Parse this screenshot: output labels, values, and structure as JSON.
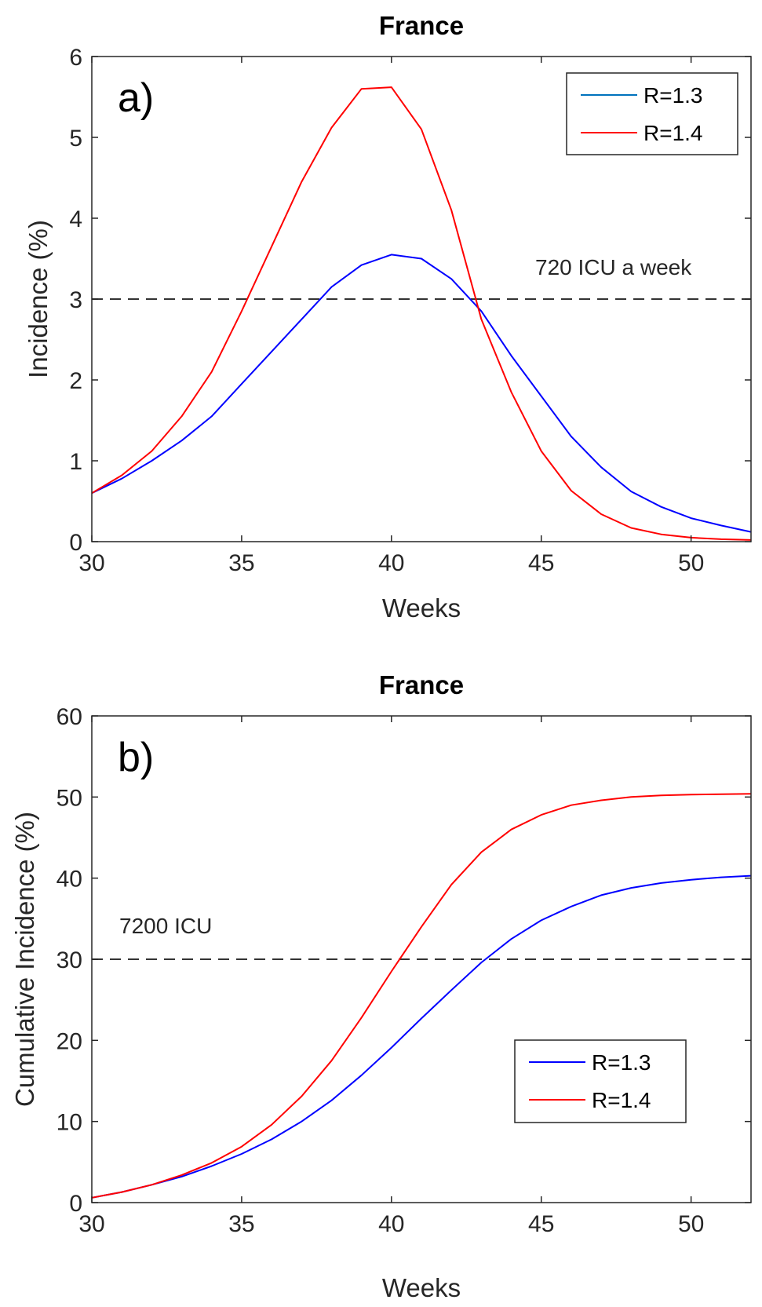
{
  "chart_data": [
    {
      "type": "line",
      "title": "France",
      "panel_label": "a)",
      "xlabel": "Weeks",
      "ylabel": "Incidence (%)",
      "xlim": [
        30,
        52
      ],
      "ylim": [
        0,
        6
      ],
      "xticks": [
        30,
        35,
        40,
        45,
        50
      ],
      "yticks": [
        0,
        1,
        2,
        3,
        4,
        5,
        6
      ],
      "grid": false,
      "legend_position": "top-right",
      "reference_line": {
        "y": 3,
        "style": "dashed",
        "color": "#000000",
        "label": "720 ICU a week"
      },
      "x": [
        30,
        31,
        32,
        33,
        34,
        35,
        36,
        37,
        38,
        39,
        40,
        41,
        42,
        43,
        44,
        45,
        46,
        47,
        48,
        49,
        50,
        51,
        52
      ],
      "series": [
        {
          "name": "R=1.3",
          "color": "#0000ff",
          "legend_color": "#0072bd",
          "values": [
            0.6,
            0.78,
            1.0,
            1.25,
            1.55,
            1.95,
            2.35,
            2.75,
            3.15,
            3.42,
            3.55,
            3.5,
            3.25,
            2.85,
            2.3,
            1.8,
            1.3,
            0.92,
            0.62,
            0.43,
            0.29,
            0.2,
            0.12
          ]
        },
        {
          "name": "R=1.4",
          "color": "#ff0000",
          "legend_color": "#ff0000",
          "values": [
            0.6,
            0.82,
            1.12,
            1.55,
            2.1,
            2.85,
            3.65,
            4.45,
            5.12,
            5.6,
            5.62,
            5.1,
            4.1,
            2.75,
            1.85,
            1.12,
            0.63,
            0.34,
            0.17,
            0.09,
            0.05,
            0.03,
            0.02
          ]
        }
      ]
    },
    {
      "type": "line",
      "title": "France",
      "panel_label": "b)",
      "xlabel": "Weeks",
      "ylabel": "Cumulative Incidence (%)",
      "xlim": [
        30,
        52
      ],
      "ylim": [
        0,
        60
      ],
      "xticks": [
        30,
        35,
        40,
        45,
        50
      ],
      "yticks": [
        0,
        10,
        20,
        30,
        40,
        50,
        60
      ],
      "grid": false,
      "legend_position": "bottom-right",
      "reference_line": {
        "y": 30,
        "style": "dashed",
        "color": "#000000",
        "label": "7200 ICU"
      },
      "x": [
        30,
        31,
        32,
        33,
        34,
        35,
        36,
        37,
        38,
        39,
        40,
        41,
        42,
        43,
        44,
        45,
        46,
        47,
        48,
        49,
        50,
        51,
        52
      ],
      "series": [
        {
          "name": "R=1.3",
          "color": "#0000ff",
          "legend_color": "#0000ff",
          "values": [
            0.6,
            1.3,
            2.2,
            3.2,
            4.5,
            6.0,
            7.8,
            10.0,
            12.6,
            15.7,
            19.1,
            22.7,
            26.2,
            29.6,
            32.5,
            34.8,
            36.5,
            37.9,
            38.8,
            39.4,
            39.8,
            40.1,
            40.3
          ]
        },
        {
          "name": "R=1.4",
          "color": "#ff0000",
          "legend_color": "#ff0000",
          "values": [
            0.6,
            1.3,
            2.2,
            3.4,
            4.9,
            6.9,
            9.6,
            13.1,
            17.5,
            22.8,
            28.5,
            34.0,
            39.2,
            43.2,
            46.0,
            47.8,
            49.0,
            49.6,
            50.0,
            50.2,
            50.3,
            50.35,
            50.4
          ]
        }
      ]
    }
  ]
}
